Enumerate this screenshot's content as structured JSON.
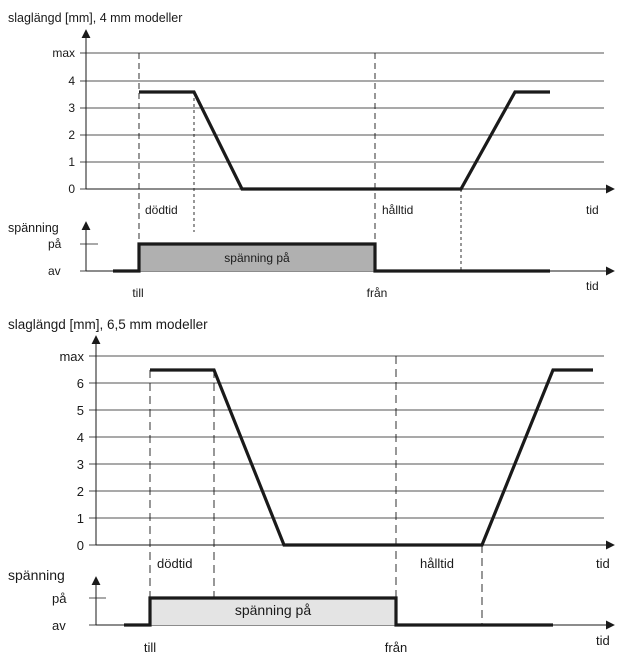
{
  "colors": {
    "line": "#1a1a1a",
    "fill_top": "#b0b0b0",
    "fill_bottom": "#e4e4e4"
  },
  "top": {
    "title": "slaglängd [mm], 4 mm modeller",
    "yticks": [
      "max",
      "4",
      "3",
      "2",
      "1",
      "0"
    ],
    "time_label": "tid",
    "dead_time_label": "dödtid",
    "hold_time_label": "hålltid",
    "voltage_title": "spänning",
    "on_label": "på",
    "off_label": "av",
    "voltage_box_label": "spänning på",
    "time_label_2": "tid",
    "till_label": "till",
    "fran_label": "från"
  },
  "bottom": {
    "title": "slaglängd [mm], 6,5 mm modeller",
    "yticks": [
      "max",
      "6",
      "5",
      "4",
      "3",
      "2",
      "1",
      "0"
    ],
    "time_label": "tid",
    "dead_time_label": "dödtid",
    "hold_time_label": "hålltid",
    "voltage_title": "spänning",
    "on_label": "på",
    "off_label": "av",
    "voltage_box_label": "spänning på",
    "time_label_2": "tid",
    "till_label": "till",
    "fran_label": "från"
  }
}
